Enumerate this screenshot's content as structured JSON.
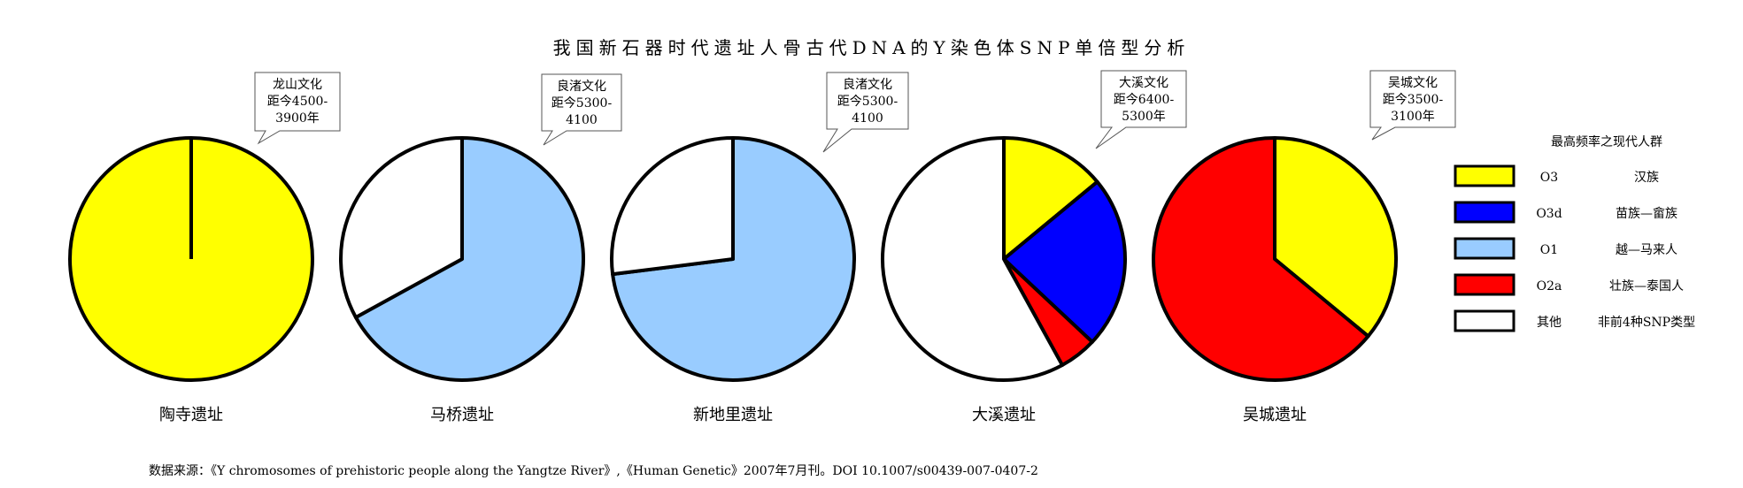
{
  "title": "我国新石器时代遗址人骨古代DNA的Y染色体SNP单倍型分析",
  "source_note": "数据来源：《Y chromosomes of prehistoric people along the Yangtze River》,《Human Genetic》2007年7月刊。DOI 10.1007/s00439-007-0407-2",
  "legend_title": "最高频率之现代人群",
  "colors": {
    "O3": "#ffff00",
    "O3d": "#0000ff",
    "O1": "#99ccff",
    "O2a": "#ff0000",
    "other": "#ffffff"
  },
  "chart_data": {
    "type": "pie",
    "title": "我国新石器时代遗址人骨古代DNA的Y染色体SNP单倍型分析",
    "legend": [
      {
        "key": "O3",
        "code": "O3",
        "population": "汉族"
      },
      {
        "key": "O3d",
        "code": "O3d",
        "population": "苗族—畲族"
      },
      {
        "key": "O1",
        "code": "O1",
        "population": "越—马来人"
      },
      {
        "key": "O2a",
        "code": "O2a",
        "population": "壮族—泰国人"
      },
      {
        "key": "other",
        "code": "其他",
        "population": "非前4种SNP类型"
      }
    ],
    "legend_placement": "right",
    "pies": [
      {
        "site": "陶寺遗址",
        "culture": [
          "龙山文化",
          "距今4500-",
          "3900年"
        ],
        "slices": [
          {
            "key": "O3",
            "value": 100
          }
        ]
      },
      {
        "site": "马桥遗址",
        "culture": [
          "良渚文化",
          "距今5300-",
          "4100"
        ],
        "slices": [
          {
            "key": "O1",
            "value": 67
          },
          {
            "key": "other",
            "value": 33
          }
        ]
      },
      {
        "site": "新地里遗址",
        "culture": [
          "良渚文化",
          "距今5300-",
          "4100"
        ],
        "slices": [
          {
            "key": "O1",
            "value": 73
          },
          {
            "key": "other",
            "value": 27
          }
        ]
      },
      {
        "site": "大溪遗址",
        "culture": [
          "大溪文化",
          "距今6400-",
          "5300年"
        ],
        "slices": [
          {
            "key": "O3",
            "value": 14
          },
          {
            "key": "O3d",
            "value": 23
          },
          {
            "key": "O2a",
            "value": 5
          },
          {
            "key": "other",
            "value": 58
          }
        ]
      },
      {
        "site": "吴城遗址",
        "culture": [
          "吴城文化",
          "距今3500-",
          "3100年"
        ],
        "slices": [
          {
            "key": "O3",
            "value": 36
          },
          {
            "key": "O2a",
            "value": 64
          }
        ]
      }
    ]
  }
}
